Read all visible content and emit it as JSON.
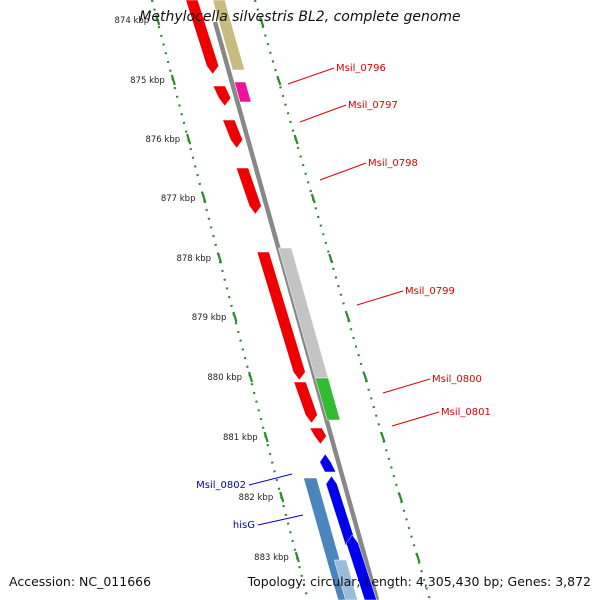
{
  "title": "Methylocella silvestris BL2, complete genome",
  "footer": {
    "accession": "Accession: NC_011666",
    "summary": "Topology: circular; Length: 4,305,430 bp; Genes: 3,872"
  },
  "colors": {
    "backbone": "#888888",
    "tick": "#2e8b2e",
    "label_red": "#dd0000",
    "label_blue": "#0000bb"
  },
  "ticks": [
    {
      "label": "874 kbp"
    },
    {
      "label": "875 kbp"
    },
    {
      "label": "876 kbp"
    },
    {
      "label": "877 kbp"
    },
    {
      "label": "878 kbp"
    },
    {
      "label": "879 kbp"
    },
    {
      "label": "880 kbp"
    },
    {
      "label": "881 kbp"
    },
    {
      "label": "882 kbp"
    },
    {
      "label": "883 kbp"
    }
  ],
  "genes": [
    {
      "name": "Msil_0796",
      "color": "#dd0000"
    },
    {
      "name": "Msil_0797",
      "color": "#dd0000"
    },
    {
      "name": "Msil_0798",
      "color": "#dd0000"
    },
    {
      "name": "Msil_0799",
      "color": "#dd0000"
    },
    {
      "name": "Msil_0800",
      "color": "#dd0000"
    },
    {
      "name": "Msil_0801",
      "color": "#dd0000"
    },
    {
      "name": "Msil_0802",
      "color": "#0000bb"
    },
    {
      "name": "hisG",
      "color": "#0000bb"
    }
  ]
}
